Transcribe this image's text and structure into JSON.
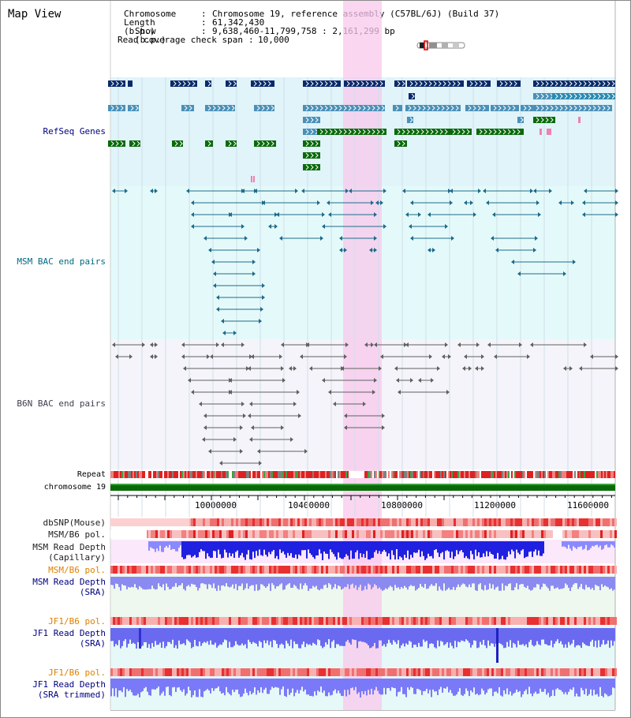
{
  "page": {
    "title": "Map View"
  },
  "info": {
    "chromosome_key": "Chromosome",
    "chromosome_val": "Chromosome 19, reference assembly (C57BL/6J) (Build 37)",
    "length_key": "Length (b.p.)",
    "length_val": "61,342,430",
    "show_key": "Show (b.p.)",
    "show_val": "9,638,460-11,799,758 : 2,161,299 bp",
    "coverage_key": "Read coverage check span",
    "coverage_val": "10,000"
  },
  "tracks": {
    "refseq": "RefSeq Genes",
    "msm_bac": "MSM BAC end pairs",
    "b6n_bac": "B6N BAC end pairs",
    "repeat": "Repeat",
    "chrom": "chromosome 19",
    "dbsnp": "dbSNP(Mouse)",
    "msm_pol": "MSM/B6 pol.",
    "msm_depth_cap_1": "MSM Read Depth",
    "msm_depth_cap_2": "(Capillary)",
    "msm_pol2": "MSM/B6 pol.",
    "msm_depth_sra_1": "MSM Read Depth",
    "msm_depth_sra_2": "(SRA)",
    "jf1_pol": "JF1/B6 pol.",
    "jf1_depth_1": "JF1 Read Depth",
    "jf1_depth_2": "(SRA)",
    "jf1_pol2": "JF1/B6 pol.",
    "jf1_depth_trim_1": "JF1 Read Depth",
    "jf1_depth_trim_2": "(SRA trimmed)"
  },
  "axis": {
    "ticks": [
      "10000000",
      "10400000",
      "10800000",
      "11200000",
      "11600000"
    ]
  },
  "colors": {
    "refseq_bg": "#e0f4fa",
    "msm_bg": "#e4fafa",
    "b6n_bg": "#f4f4fa",
    "highlight": "#f8c8ec",
    "dark_gene": "#0a2a6a",
    "mid_gene": "#4a90b8",
    "green_gene": "#0a6a0a",
    "msm_link": "#1e6a8a",
    "b6n_link": "#606060",
    "label_blue": "#000080",
    "label_teal": "#006a80",
    "label_gray": "#404050",
    "label_orange": "#e08000"
  }
}
